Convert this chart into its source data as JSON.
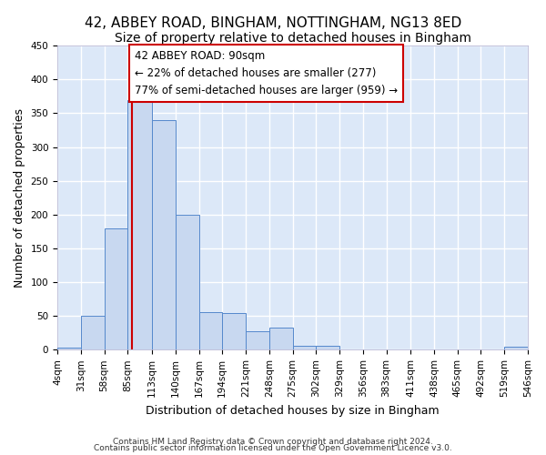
{
  "title_line1": "42, ABBEY ROAD, BINGHAM, NOTTINGHAM, NG13 8ED",
  "title_line2": "Size of property relative to detached houses in Bingham",
  "xlabel": "Distribution of detached houses by size in Bingham",
  "ylabel": "Number of detached properties",
  "bin_edges": [
    4,
    31,
    58,
    85,
    113,
    140,
    167,
    194,
    221,
    248,
    275,
    302,
    329,
    356,
    383,
    411,
    438,
    465,
    492,
    519,
    546
  ],
  "bin_counts": [
    3,
    50,
    180,
    370,
    340,
    200,
    55,
    54,
    27,
    33,
    6,
    6,
    0,
    0,
    0,
    0,
    0,
    0,
    0,
    4
  ],
  "bar_color": "#c8d8f0",
  "bar_edge_color": "#5588cc",
  "property_size": 90,
  "red_line_color": "#cc0000",
  "annotation_text": "42 ABBEY ROAD: 90sqm\n← 22% of detached houses are smaller (277)\n77% of semi-detached houses are larger (959) →",
  "annotation_box_color": "#ffffff",
  "annotation_box_edge": "#cc0000",
  "footnote1": "Contains HM Land Registry data © Crown copyright and database right 2024.",
  "footnote2": "Contains public sector information licensed under the Open Government Licence v3.0.",
  "fig_background_color": "#ffffff",
  "axes_background_color": "#dce8f8",
  "grid_color": "#ffffff",
  "ylim": [
    0,
    450
  ],
  "xlim": [
    4,
    546
  ],
  "title_fontsize": 11,
  "subtitle_fontsize": 10,
  "xlabel_fontsize": 9,
  "ylabel_fontsize": 9,
  "tick_fontsize": 7.5
}
